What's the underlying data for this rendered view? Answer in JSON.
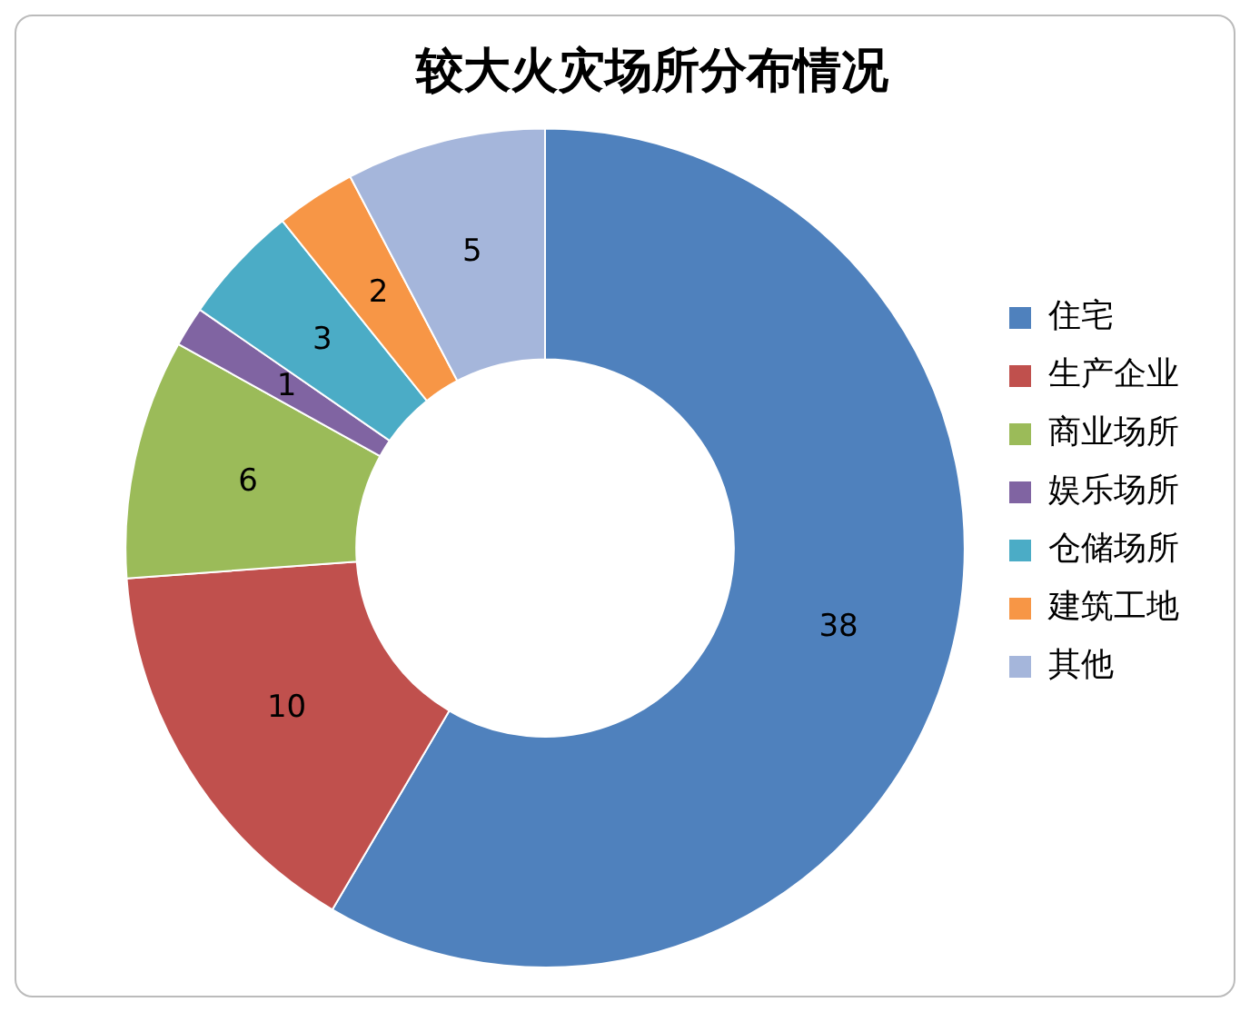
{
  "chart_data": {
    "type": "donut",
    "title": "较大火灾场所分布情况",
    "categories": [
      "住宅",
      "生产企业",
      "商业场所",
      "娱乐场所",
      "仓储场所",
      "建筑工地",
      "其他"
    ],
    "values": [
      38,
      10,
      6,
      1,
      3,
      2,
      5
    ],
    "colors": [
      "#4f81bd",
      "#c0504d",
      "#9bbb59",
      "#8064a2",
      "#4bacc6",
      "#f79646",
      "#a5b6db"
    ],
    "data_labels": true,
    "legend": "right"
  }
}
